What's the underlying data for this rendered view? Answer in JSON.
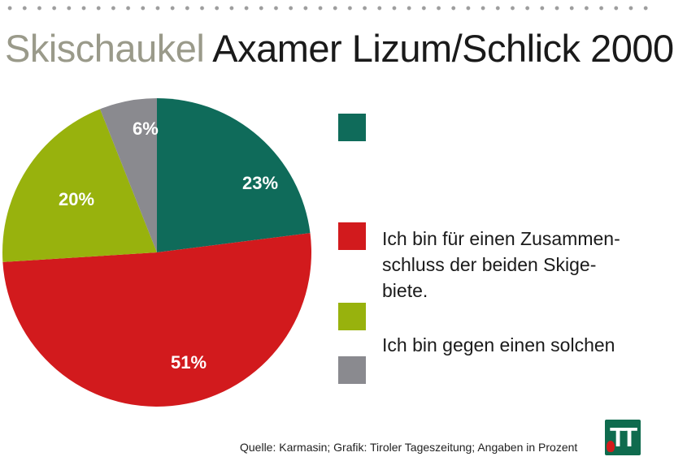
{
  "title": {
    "part1": "Skischaukel",
    "part2": "Axamer Lizum/Schlick 2000"
  },
  "colors": {
    "green": "#0f6b5a",
    "red": "#d21a1d",
    "olive": "#98b20d",
    "gray": "#8a8a8f"
  },
  "chart_data": {
    "type": "pie",
    "title": "Skischaukel Axamer Lizum/Schlick 2000",
    "unit": "%",
    "slices": [
      {
        "label": "23%",
        "value": 23,
        "color": "#0f6b5a",
        "legend": ""
      },
      {
        "label": "51%",
        "value": 51,
        "color": "#d21a1d",
        "legend": "Ich bin für einen Zusammen- schluss der beiden Skige- biete."
      },
      {
        "label": "20%",
        "value": 20,
        "color": "#98b20d",
        "legend": ""
      },
      {
        "label": "6%",
        "value": 6,
        "color": "#8a8a8f",
        "legend": "Ich bin gegen einen solchen"
      }
    ]
  },
  "legend": {
    "red_line1": "Ich bin für einen Zusammen-",
    "red_line2": "schluss der beiden Skige-",
    "red_line3": "biete.",
    "gray_text": "Ich bin gegen einen solchen"
  },
  "source": "Quelle: Karmasin; Grafik: Tiroler Tageszeitung; Angaben in Prozent",
  "logo": {
    "text1": "T",
    "text2": "T"
  }
}
